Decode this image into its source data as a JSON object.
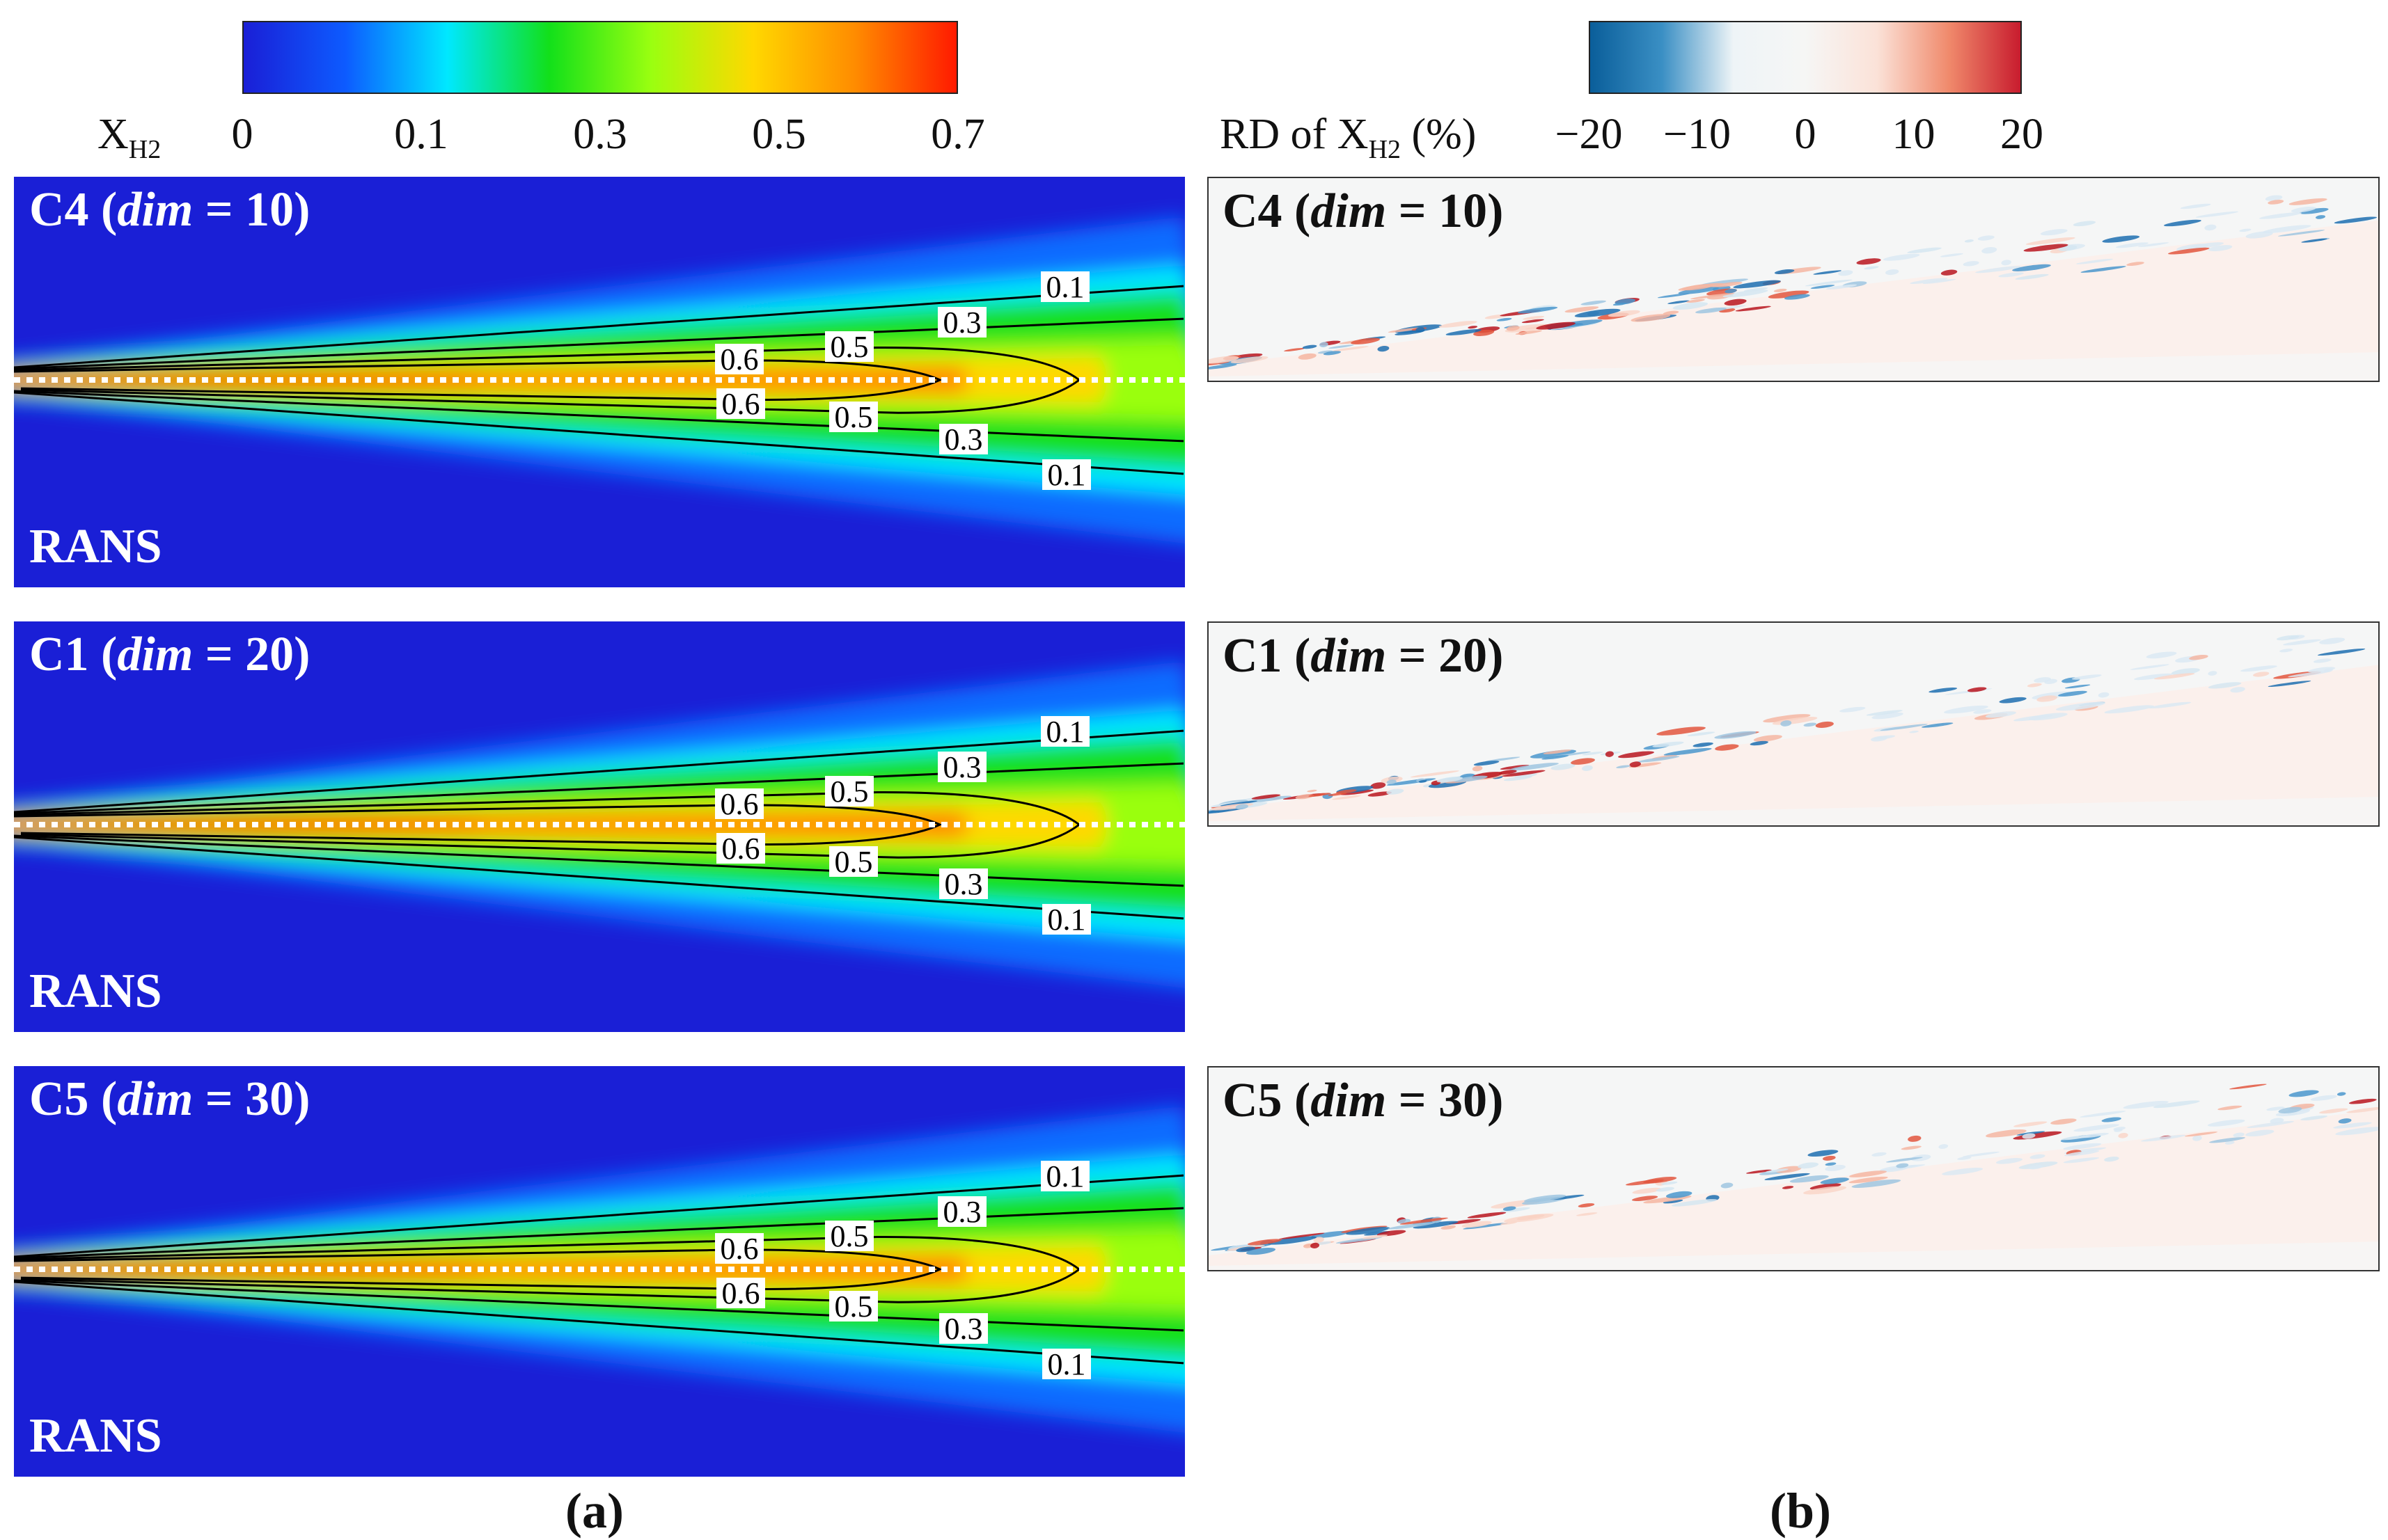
{
  "figure": {
    "caption_a": "(a)",
    "caption_b": "(b)",
    "rans_label": "RANS"
  },
  "colorbar_a": {
    "label_main": "X",
    "label_sub": "H2",
    "ticks": [
      "0",
      "0.1",
      "0.3",
      "0.5",
      "0.7"
    ],
    "colors": [
      "#1a1fd6",
      "#0d5bff",
      "#00e8ff",
      "#12e01a",
      "#9aff10",
      "#ffd800",
      "#ff8c00",
      "#ff1a00"
    ]
  },
  "colorbar_b": {
    "label_pre": "RD of X",
    "label_sub": "H2",
    "label_post": " (%)",
    "ticks": [
      "−20",
      "−10",
      "0",
      "10",
      "20"
    ],
    "colors": [
      "#0a5e9a",
      "#3a8fc4",
      "#eef4f7",
      "#f6f6f5",
      "#fbe2d8",
      "#f08a6c",
      "#c81c2e"
    ]
  },
  "chart_data": [
    {
      "type": "heatmap",
      "name": "panel-a-contour",
      "variable": "X_H2 (H2 mole fraction)",
      "colorbar_range": [
        0,
        0.7
      ],
      "colorbar_ticks": [
        0,
        0.1,
        0.3,
        0.5,
        0.7
      ],
      "contour_levels": [
        0.1,
        0.3,
        0.5,
        0.6
      ],
      "rows": [
        {
          "case": "C4",
          "dim_label": "dim",
          "dim_value": "10",
          "contour_labels": {
            "upper": [
              "0.1",
              "0.3",
              "0.5",
              "0.6"
            ],
            "lower": [
              "0.6",
              "0.5",
              "0.3",
              "0.1"
            ]
          }
        },
        {
          "case": "C1",
          "dim_label": "dim",
          "dim_value": "20",
          "contour_labels": {
            "upper": [
              "0.1",
              "0.3",
              "0.5",
              "0.6"
            ],
            "lower": [
              "0.6",
              "0.5",
              "0.3",
              "0.1"
            ]
          }
        },
        {
          "case": "C5",
          "dim_label": "dim",
          "dim_value": "30",
          "contour_labels": {
            "upper": [
              "0.1",
              "0.3",
              "0.5",
              "0.6"
            ],
            "lower": [
              "0.6",
              "0.5",
              "0.3",
              "0.1"
            ]
          }
        }
      ],
      "reference": "RANS"
    },
    {
      "type": "heatmap",
      "name": "panel-b-relative-difference",
      "variable": "RD of X_H2 (%)",
      "colorbar_range": [
        -20,
        20
      ],
      "colorbar_ticks": [
        -20,
        -10,
        0,
        10,
        20
      ],
      "rows": [
        {
          "case": "C4",
          "dim_label": "dim",
          "dim_value": "10"
        },
        {
          "case": "C1",
          "dim_label": "dim",
          "dim_value": "20"
        },
        {
          "case": "C5",
          "dim_label": "dim",
          "dim_value": "30"
        }
      ]
    }
  ]
}
